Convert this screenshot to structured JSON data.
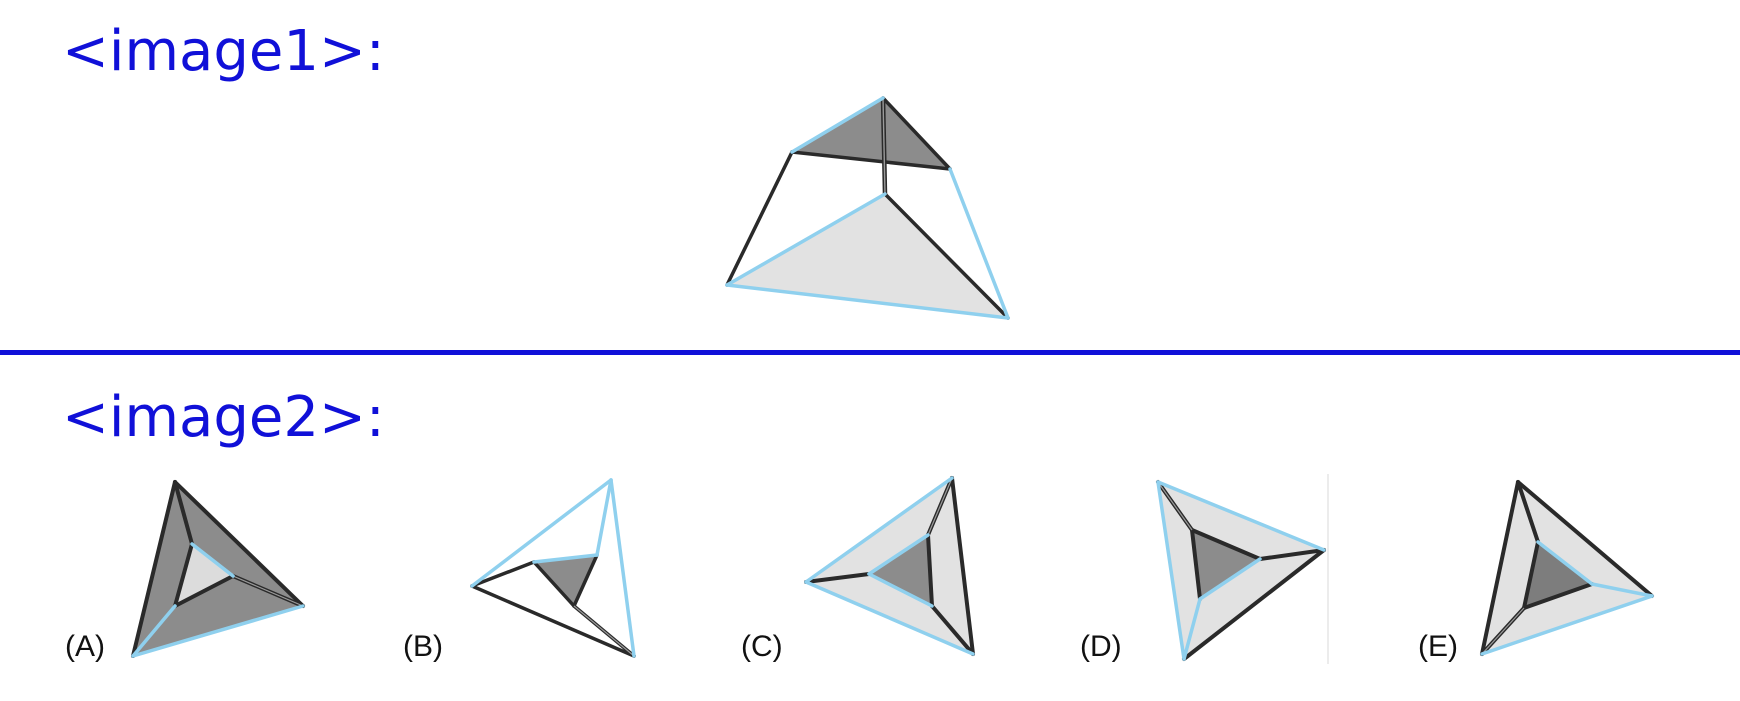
{
  "sections": {
    "image1_label": "<image1>:",
    "image2_label": "<image2>:"
  },
  "options": [
    {
      "label": "(A)"
    },
    {
      "label": "(B)"
    },
    {
      "label": "(C)"
    },
    {
      "label": "(D)"
    },
    {
      "label": "(E)"
    }
  ],
  "colors": {
    "label_blue": "#1010d8",
    "edge_black": "#2a2a2a",
    "edge_light_blue": "#8fd0ee",
    "face_dark_gray": "#8c8c8c",
    "face_light_gray": "#e2e2e2"
  }
}
